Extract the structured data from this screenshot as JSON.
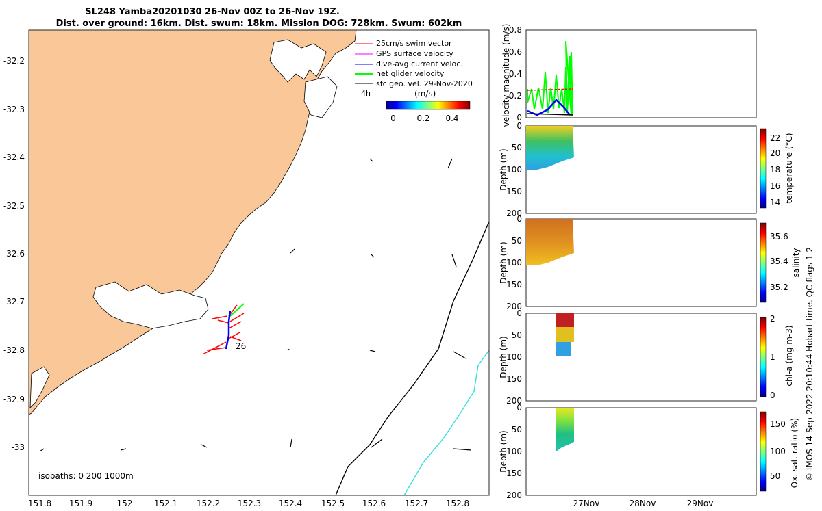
{
  "title": {
    "line1": "SL248 Yamba20201030 26-Nov 00Z to 26-Nov 19Z.",
    "line2": "Dist. over ground: 16km. Dist. swum: 18km. Mission DOG: 728km. Swum: 602km"
  },
  "map": {
    "xticks": [
      "151.8",
      "151.9",
      "152",
      "152.1",
      "152.2",
      "152.3",
      "152.4",
      "152.5",
      "152.6",
      "152.7",
      "152.8"
    ],
    "yticks": [
      "-32.2",
      "-32.3",
      "-32.4",
      "-32.5",
      "-32.6",
      "-32.7",
      "-32.8",
      "-32.9",
      "-33"
    ],
    "legend": [
      {
        "label": "25cm/s swim vector",
        "color": "#ff0000"
      },
      {
        "label": "GPS surface velocity",
        "color": "#ff00ff"
      },
      {
        "label": "dive-avg current veloc.",
        "color": "#0000ff"
      },
      {
        "label": "net glider velocity",
        "color": "#00ff00"
      },
      {
        "label": "sfc geo. vel. 29-Nov-2020",
        "color": "#000000"
      }
    ],
    "time_marker": "4h",
    "colorbar_label": "(m/s)",
    "colorbar_ticks": [
      "0",
      "0.2",
      "0.4"
    ],
    "day_label": "26",
    "isobaths_label": "isobaths: 0   200  1000m",
    "land_color": "#fac898",
    "isobath_200_color": "#000000",
    "isobath_1000_color": "#33e0e0"
  },
  "panels": {
    "velocity": {
      "ylabel": "velocity magnitude (m/s)",
      "yticks": [
        "0",
        "0.2",
        "0.4",
        "0.6",
        "0.8"
      ]
    },
    "temperature": {
      "ylabel": "Depth (m)",
      "cbar_label": "temperature (°C)",
      "cbar_ticks": [
        "14",
        "16",
        "18",
        "20",
        "22"
      ],
      "yticks": [
        "0",
        "50",
        "100",
        "150",
        "200"
      ]
    },
    "salinity": {
      "ylabel": "Depth (m)",
      "cbar_label": "salinity",
      "cbar_ticks": [
        "35.2",
        "35.4",
        "35.6"
      ],
      "yticks": [
        "0",
        "50",
        "100",
        "150",
        "200"
      ]
    },
    "chla": {
      "ylabel": "Depth (m)",
      "cbar_label": "chl-a (mg m-3)",
      "cbar_ticks": [
        "0",
        "1",
        "2"
      ],
      "yticks": [
        "0",
        "50",
        "100",
        "150",
        "200"
      ]
    },
    "oxygen": {
      "ylabel": "Depth (m)",
      "cbar_label": "Ox. sat. ratio (%)",
      "cbar_ticks": [
        "50",
        "100",
        "150"
      ],
      "yticks": [
        "0",
        "50",
        "100",
        "150",
        "200"
      ]
    },
    "xticks": [
      "27Nov",
      "28Nov",
      "29Nov"
    ]
  },
  "footer": "© IMOS 14-Sep-2022 20:10:44 Hobart time. QC flags 1  2"
}
